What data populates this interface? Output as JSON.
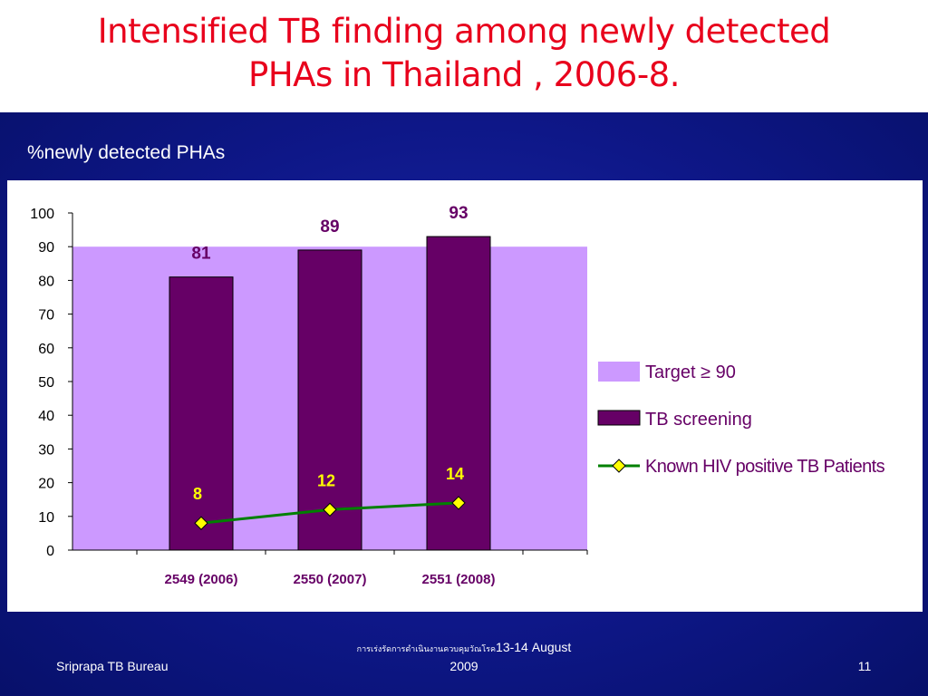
{
  "slide": {
    "title_line_1": "Intensified TB finding among newly detected",
    "title_line_2": "PHAs in Thailand , 2006-8.",
    "subtitle": "%newly detected PHAs",
    "footer_left": "Sriprapa TB Bureau",
    "footer_center_thai": "การเร่งรัดการดำเนินงานควบคุมวัณโรค",
    "footer_center_date": "13-14 August",
    "footer_center_year": "2009",
    "page_number": "11"
  },
  "colors": {
    "title": "#e8001c",
    "background_blue": "#0e1788",
    "target_band": "#cc99ff",
    "bar_fill": "#660066",
    "line": "#008000",
    "marker": "#ffff00",
    "value_label": "#660066",
    "line_label": "#ffff00"
  },
  "chart_data": {
    "type": "bar",
    "categories": [
      "2549 (2006)",
      "2550 (2007)",
      "2551 (2008)"
    ],
    "ylim": [
      0,
      100
    ],
    "yticks": [
      0,
      10,
      20,
      30,
      40,
      50,
      60,
      70,
      80,
      90,
      100
    ],
    "target": {
      "name": "Target ≥ 90",
      "value": 90
    },
    "series": [
      {
        "name": "TB screening",
        "kind": "bar",
        "values": [
          81,
          89,
          93
        ],
        "labels": [
          "81",
          "89",
          "93"
        ]
      },
      {
        "name": "Known HIV positive TB Patients",
        "kind": "line",
        "values": [
          8,
          12,
          14
        ],
        "labels": [
          "8",
          "12",
          "14"
        ]
      }
    ],
    "legend_position": "right"
  }
}
